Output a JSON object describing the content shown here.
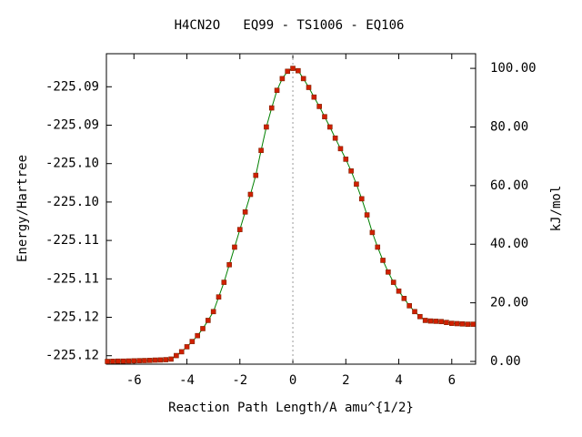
{
  "chart_data": {
    "type": "line",
    "title": "H4CN2O   EQ99 - TS1006 - EQ106",
    "xlabel": "Reaction Path Length/A amu^{1/2}",
    "ylabel": "Energy/Hartree",
    "y2label": "kJ/mol",
    "xlim": [
      -7.04,
      6.9
    ],
    "xticks": [
      -6,
      -4,
      -2,
      0,
      2,
      4,
      6
    ],
    "ylim": [
      -225.1236,
      -225.0832
    ],
    "yticks": [
      {
        "value": -225.1225,
        "label": "-225.12"
      },
      {
        "value": -225.1175,
        "label": "-225.12"
      },
      {
        "value": -225.1125,
        "label": "-225.11"
      },
      {
        "value": -225.1075,
        "label": "-225.11"
      },
      {
        "value": -225.1025,
        "label": "-225.10"
      },
      {
        "value": -225.0975,
        "label": "-225.10"
      },
      {
        "value": -225.0925,
        "label": "-225.09"
      },
      {
        "value": -225.0875,
        "label": "-225.09"
      }
    ],
    "y2lim": [
      -0.93,
      105
    ],
    "y2ticks": [
      {
        "value": 0,
        "label": "0.00"
      },
      {
        "value": 20,
        "label": "20.00"
      },
      {
        "value": 40,
        "label": "40.00"
      },
      {
        "value": 60,
        "label": "60.00"
      },
      {
        "value": 80,
        "label": "80.00"
      },
      {
        "value": 100,
        "label": "100.00"
      }
    ],
    "x": [
      -7.0,
      -6.8,
      -6.6,
      -6.4,
      -6.2,
      -6.0,
      -5.8,
      -5.6,
      -5.4,
      -5.2,
      -5.0,
      -4.8,
      -4.6,
      -4.4,
      -4.2,
      -4.0,
      -3.8,
      -3.6,
      -3.4,
      -3.2,
      -3.0,
      -2.8,
      -2.6,
      -2.4,
      -2.2,
      -2.0,
      -1.8,
      -1.6,
      -1.4,
      -1.2,
      -1.0,
      -0.8,
      -0.6,
      -0.4,
      -0.2,
      0,
      0.2,
      0.4,
      0.6,
      0.8,
      1.0,
      1.2,
      1.4,
      1.6,
      1.8,
      2.0,
      2.2,
      2.4,
      2.6,
      2.8,
      3.0,
      3.2,
      3.4,
      3.6,
      3.8,
      4.0,
      4.2,
      4.4,
      4.6,
      4.8,
      5.0,
      5.2,
      5.4,
      5.6,
      5.8,
      6.0,
      6.2,
      6.4,
      6.6,
      6.8
    ],
    "series": [
      {
        "axis": "y2",
        "color": "#008000",
        "marker_color": "#d02000",
        "values": [
          0,
          0.05,
          0.1,
          0.1,
          0.15,
          0.2,
          0.25,
          0.3,
          0.35,
          0.45,
          0.5,
          0.6,
          0.8,
          2,
          3.3,
          5,
          6.8,
          8.8,
          11.2,
          14,
          17,
          22,
          27,
          33,
          39,
          45,
          51,
          57,
          63.5,
          72,
          80,
          86.5,
          92.5,
          96.5,
          99,
          100,
          99.2,
          96.5,
          93.5,
          90.2,
          87,
          83.5,
          80,
          76.2,
          72.6,
          69,
          65,
          60.5,
          55.5,
          50,
          44,
          39,
          34.5,
          30.5,
          27,
          24,
          21.5,
          19,
          17,
          15.3,
          14,
          13.8,
          13.7,
          13.6,
          13.3,
          13,
          12.9,
          12.8,
          12.7,
          12.7
        ]
      }
    ]
  }
}
